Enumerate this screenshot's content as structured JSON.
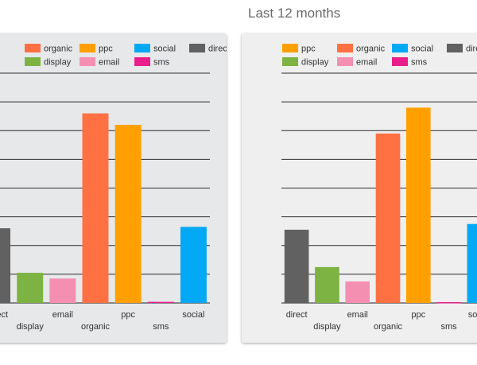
{
  "panels": [
    {
      "title": "",
      "chart_data": {
        "type": "bar",
        "categories": [
          "direct",
          "display",
          "email",
          "organic",
          "ppc",
          "sms",
          "social"
        ],
        "values": [
          26,
          10.5,
          8.5,
          66,
          62,
          0.4,
          26.5
        ],
        "legend": [
          "organic",
          "ppc",
          "social",
          "direct",
          "display",
          "email",
          "sms"
        ],
        "colors": {
          "organic": "#ff7043",
          "ppc": "#ffa000",
          "social": "#03a9f4",
          "direct": "#616161",
          "display": "#7cb342",
          "email": "#f48fb1",
          "sms": "#e91e8c"
        },
        "ylim": [
          0,
          80
        ],
        "grid": true,
        "legend_position": "top"
      }
    },
    {
      "title": "Last 12 months",
      "chart_data": {
        "type": "bar",
        "categories": [
          "direct",
          "display",
          "email",
          "organic",
          "ppc",
          "sms",
          "social"
        ],
        "values": [
          25.5,
          12.5,
          7.5,
          59,
          68,
          0.3,
          27.5
        ],
        "legend": [
          "ppc",
          "organic",
          "social",
          "direct",
          "display",
          "email",
          "sms"
        ],
        "colors": {
          "organic": "#ff7043",
          "ppc": "#ffa000",
          "social": "#03a9f4",
          "direct": "#616161",
          "display": "#7cb342",
          "email": "#f48fb1",
          "sms": "#e91e8c"
        },
        "ylim": [
          0,
          80
        ],
        "grid": true,
        "legend_position": "top"
      }
    }
  ]
}
